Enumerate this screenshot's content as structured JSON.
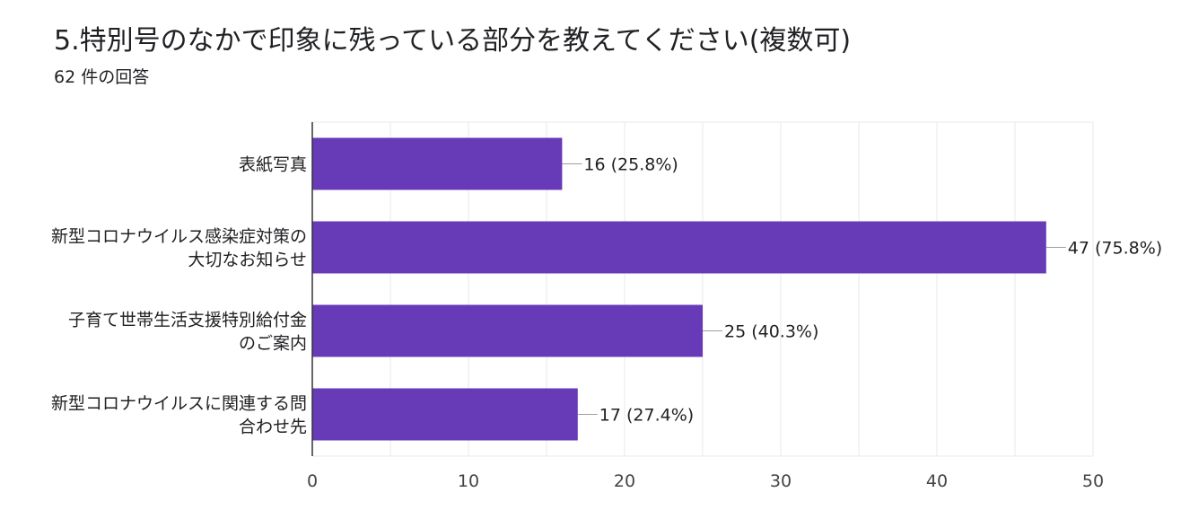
{
  "header": {
    "title": "5.特別号のなかで印象に残っている部分を教えてください(複数可)",
    "response_count": "62 件の回答"
  },
  "chart_data": {
    "type": "bar",
    "orientation": "horizontal",
    "categories": [
      [
        "表紙写真"
      ],
      [
        "新型コロナウイルス感染症対策の",
        "大切なお知らせ"
      ],
      [
        "子育て世帯生活支援特別給付金",
        "のご案内"
      ],
      [
        "新型コロナウイルスに関連する問",
        "合わせ先"
      ]
    ],
    "values": [
      16,
      47,
      25,
      17
    ],
    "data_labels": [
      "16 (25.8%)",
      "47 (75.8%)",
      "25 (40.3%)",
      "17 (27.4%)"
    ],
    "xlim": [
      0,
      50
    ],
    "xticks": [
      0,
      10,
      20,
      30,
      40,
      50
    ],
    "grid": true,
    "bar_color": "#673ab7",
    "grid_color": "#e8e8e8",
    "axis_color": "#333333",
    "leader_color": "#9e9e9e"
  }
}
